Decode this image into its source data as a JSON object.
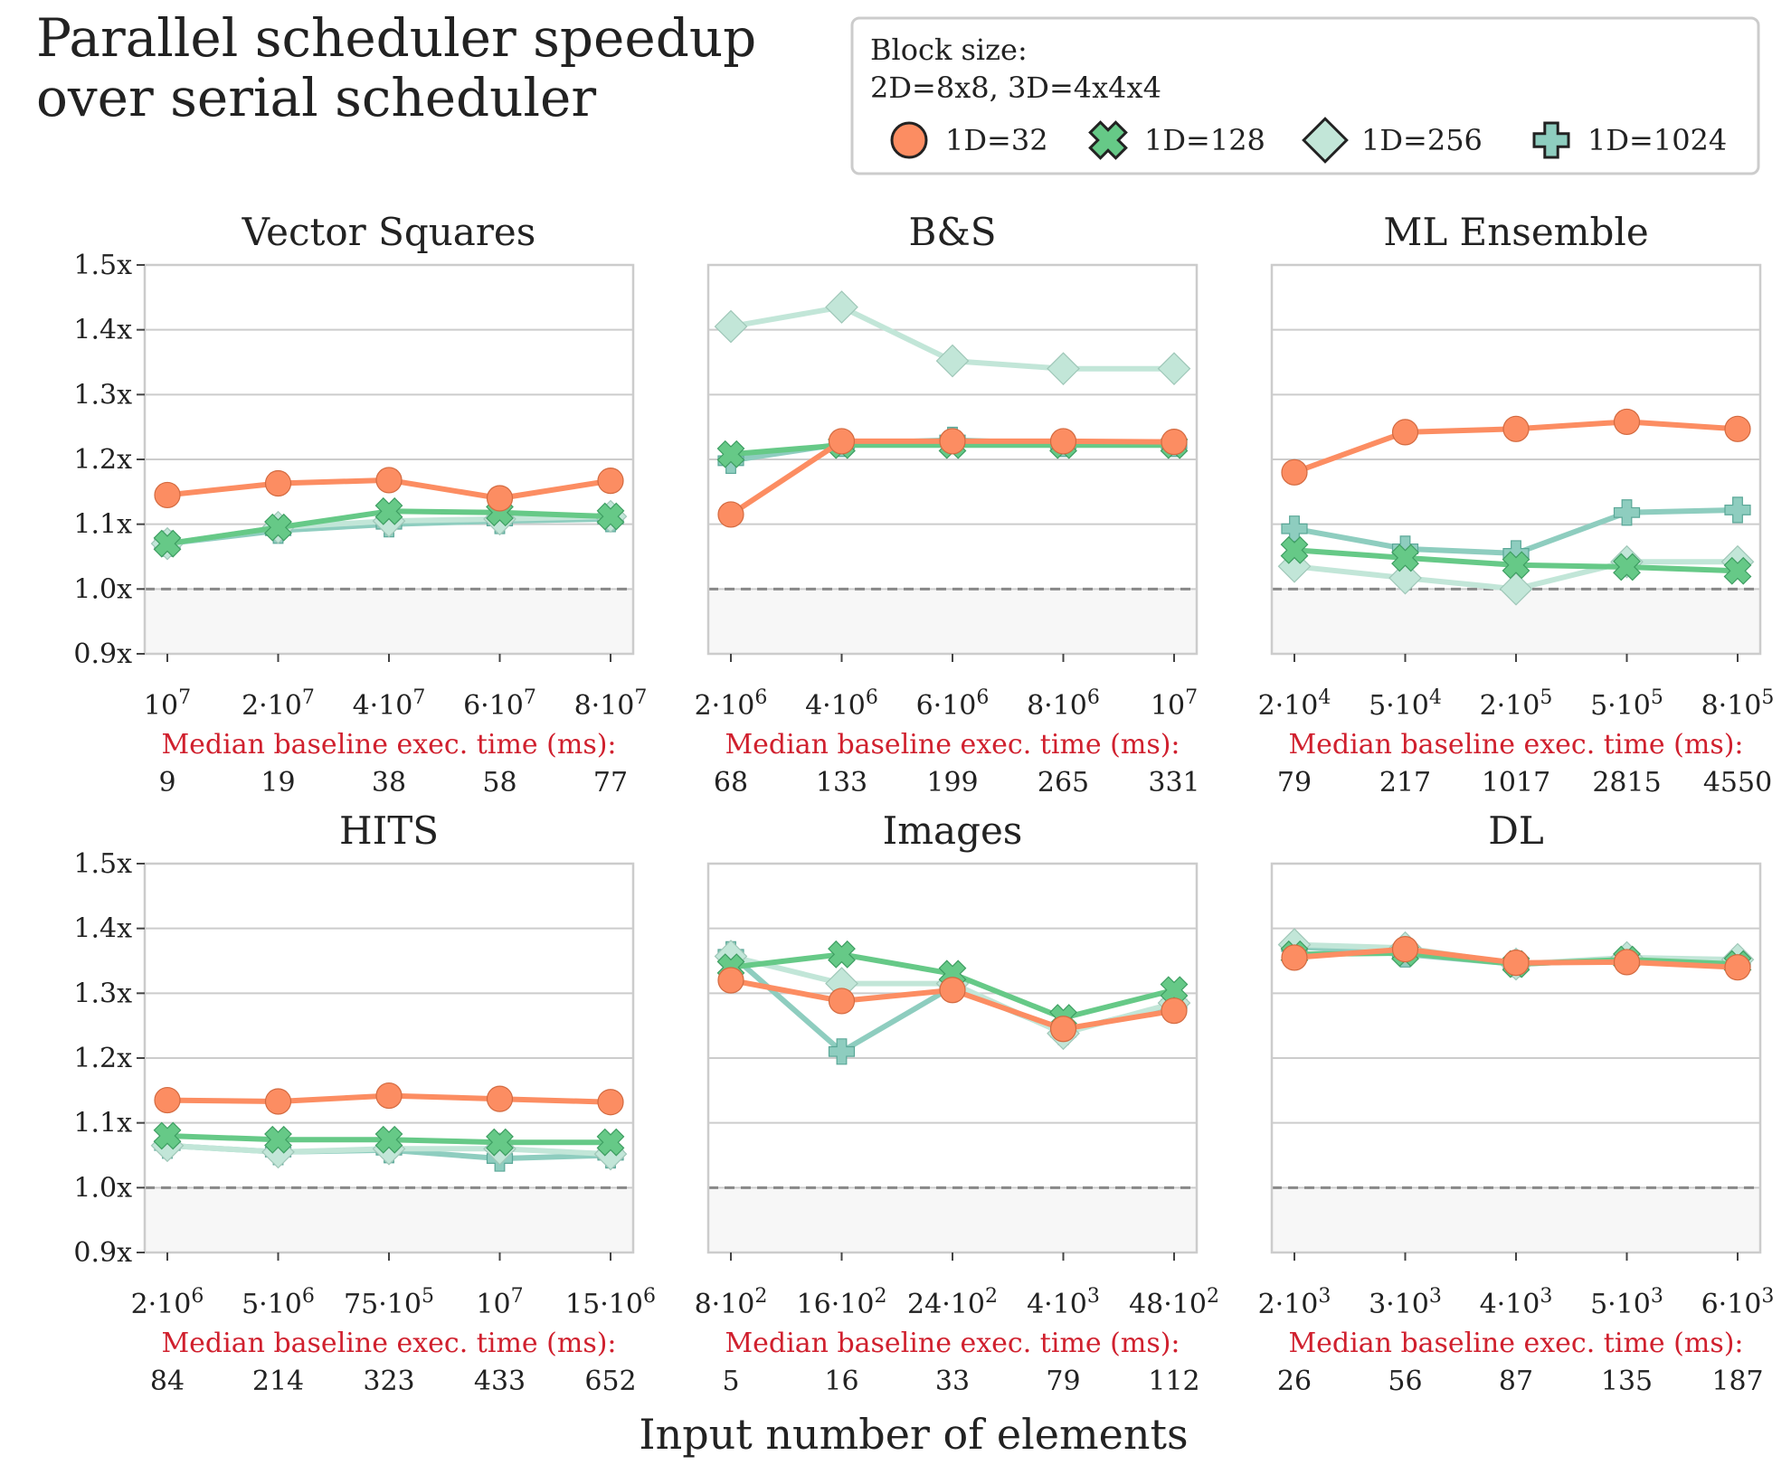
{
  "title_line1": "Parallel scheduler speedup",
  "title_line2": "over serial scheduler",
  "legend": {
    "title_line1": "Block size:",
    "title_line2": "2D=8x8, 3D=4x4x4",
    "entries": [
      "1D=32",
      "1D=128",
      "1D=256",
      "1D=1024"
    ]
  },
  "xlabel": "Input number of elements",
  "median_label": "Median baseline exec. time (ms):",
  "y_ticks": [
    "0.9x",
    "1.0x",
    "1.1x",
    "1.2x",
    "1.3x",
    "1.4x",
    "1.5x"
  ],
  "colors": {
    "s32": "#fc8d62",
    "s128": "#66c987",
    "s256": "#c2e6d8",
    "s1024": "#8ecdbf",
    "baseline": "#888888",
    "shade": "#f7f7f7"
  },
  "chart_data": [
    {
      "type": "line",
      "title": "Vector Squares",
      "categories": [
        "10^7",
        "2·10^7",
        "4·10^7",
        "6·10^7",
        "8·10^7"
      ],
      "median_ms": [
        "9",
        "19",
        "38",
        "58",
        "77"
      ],
      "ylim": [
        0.9,
        1.5
      ],
      "baseline": 1.0,
      "series": [
        {
          "name": "1D=32",
          "values": [
            1.145,
            1.163,
            1.168,
            1.14,
            1.167
          ]
        },
        {
          "name": "1D=128",
          "values": [
            1.07,
            1.095,
            1.12,
            1.118,
            1.112
          ]
        },
        {
          "name": "1D=256",
          "values": [
            1.07,
            1.095,
            1.105,
            1.108,
            1.112
          ]
        },
        {
          "name": "1D=1024",
          "values": [
            1.07,
            1.09,
            1.1,
            1.105,
            1.108
          ]
        }
      ]
    },
    {
      "type": "line",
      "title": "B&S",
      "categories": [
        "2·10^6",
        "4·10^6",
        "6·10^6",
        "8·10^6",
        "10^7"
      ],
      "median_ms": [
        "68",
        "133",
        "199",
        "265",
        "331"
      ],
      "ylim": [
        0.9,
        1.5
      ],
      "baseline": 1.0,
      "series": [
        {
          "name": "1D=32",
          "values": [
            1.115,
            1.228,
            1.228,
            1.228,
            1.227
          ]
        },
        {
          "name": "1D=128",
          "values": [
            1.208,
            1.222,
            1.222,
            1.222,
            1.222
          ]
        },
        {
          "name": "1D=256",
          "values": [
            1.405,
            1.435,
            1.352,
            1.34,
            1.34
          ]
        },
        {
          "name": "1D=1024",
          "values": [
            1.198,
            1.224,
            1.23,
            1.224,
            1.224
          ]
        }
      ]
    },
    {
      "type": "line",
      "title": "ML Ensemble",
      "categories": [
        "2·10^4",
        "5·10^4",
        "2·10^5",
        "5·10^5",
        "8·10^5"
      ],
      "median_ms": [
        "79",
        "217",
        "1017",
        "2815",
        "4550"
      ],
      "ylim": [
        0.9,
        1.5
      ],
      "baseline": 1.0,
      "series": [
        {
          "name": "1D=32",
          "values": [
            1.18,
            1.242,
            1.247,
            1.258,
            1.247
          ]
        },
        {
          "name": "1D=128",
          "values": [
            1.06,
            1.048,
            1.037,
            1.034,
            1.028
          ]
        },
        {
          "name": "1D=256",
          "values": [
            1.035,
            1.017,
            1.0,
            1.042,
            1.042
          ]
        },
        {
          "name": "1D=1024",
          "values": [
            1.093,
            1.062,
            1.055,
            1.118,
            1.122
          ]
        }
      ]
    },
    {
      "type": "line",
      "title": "HITS",
      "categories": [
        "2·10^6",
        "5·10^6",
        "75·10^5",
        "10^7",
        "15·10^6"
      ],
      "median_ms": [
        "84",
        "214",
        "323",
        "433",
        "652"
      ],
      "ylim": [
        0.9,
        1.5
      ],
      "baseline": 1.0,
      "series": [
        {
          "name": "1D=32",
          "values": [
            1.135,
            1.133,
            1.142,
            1.137,
            1.132
          ]
        },
        {
          "name": "1D=128",
          "values": [
            1.08,
            1.074,
            1.074,
            1.07,
            1.07
          ]
        },
        {
          "name": "1D=256",
          "values": [
            1.065,
            1.055,
            1.06,
            1.06,
            1.052
          ]
        },
        {
          "name": "1D=1024",
          "values": [
            1.065,
            1.055,
            1.058,
            1.045,
            1.05
          ]
        }
      ]
    },
    {
      "type": "line",
      "title": "Images",
      "categories": [
        "8·10^2",
        "16·10^2",
        "24·10^2",
        "4·10^3",
        "48·10^2"
      ],
      "median_ms": [
        "5",
        "16",
        "33",
        "79",
        "112"
      ],
      "ylim": [
        0.9,
        1.5
      ],
      "baseline": 1.0,
      "series": [
        {
          "name": "1D=32",
          "values": [
            1.32,
            1.288,
            1.305,
            1.245,
            1.273
          ]
        },
        {
          "name": "1D=128",
          "values": [
            1.34,
            1.36,
            1.33,
            1.262,
            1.305
          ]
        },
        {
          "name": "1D=256",
          "values": [
            1.357,
            1.315,
            1.315,
            1.238,
            1.285
          ]
        },
        {
          "name": "1D=1024",
          "values": [
            1.36,
            1.21,
            1.31,
            1.24,
            1.283
          ]
        }
      ]
    },
    {
      "type": "line",
      "title": "DL",
      "categories": [
        "2·10^3",
        "3·10^3",
        "4·10^3",
        "5·10^3",
        "6·10^3"
      ],
      "median_ms": [
        "26",
        "56",
        "87",
        "135",
        "187"
      ],
      "ylim": [
        0.9,
        1.5
      ],
      "baseline": 1.0,
      "series": [
        {
          "name": "1D=32",
          "values": [
            1.355,
            1.368,
            1.347,
            1.348,
            1.34
          ]
        },
        {
          "name": "1D=128",
          "values": [
            1.36,
            1.362,
            1.345,
            1.352,
            1.345
          ]
        },
        {
          "name": "1D=256",
          "values": [
            1.375,
            1.37,
            1.345,
            1.355,
            1.352
          ]
        },
        {
          "name": "1D=1024",
          "values": [
            1.372,
            1.36,
            1.345,
            1.352,
            1.348
          ]
        }
      ]
    }
  ]
}
